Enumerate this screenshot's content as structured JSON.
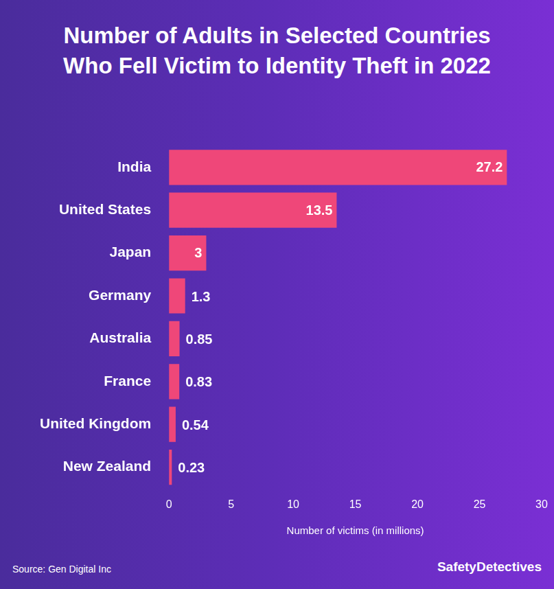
{
  "chart_data": {
    "type": "bar",
    "orientation": "horizontal",
    "title": "Number of Adults in Selected Countries Who Fell Victim to Identity Theft in 2022",
    "categories": [
      "India",
      "United States",
      "Japan",
      "Germany",
      "Australia",
      "France",
      "United Kingdom",
      "New Zealand"
    ],
    "values": [
      27.2,
      13.5,
      3,
      1.3,
      0.85,
      0.83,
      0.54,
      0.23
    ],
    "color": "#ef4779",
    "x_label": "Number of victims (in millions)",
    "xlim": [
      0,
      30
    ],
    "xticks": [
      0,
      5,
      10,
      15,
      20,
      25,
      30
    ],
    "grid": false,
    "data_labels": true,
    "source": "Source: Gen Digital Inc",
    "brand": "SafetyDetectives"
  }
}
